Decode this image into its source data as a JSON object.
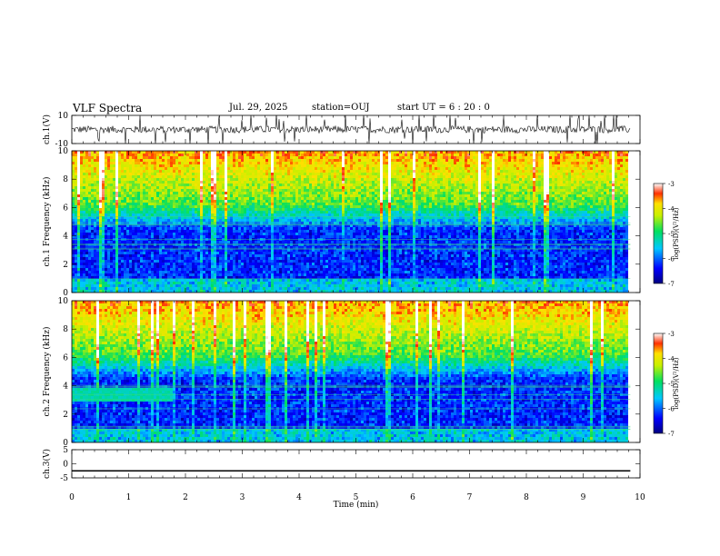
{
  "header": {
    "title": "VLF Spectra",
    "date": "Jul. 29, 2025",
    "station": "station=OUJ",
    "start": "start  UT =  6 : 20 : 0"
  },
  "chart_data": [
    {
      "id": "ch1v",
      "type": "line",
      "ylabel": "ch.1(V)",
      "ylim": [
        -10,
        10
      ],
      "yticks": [
        "10",
        "-10"
      ],
      "xlim": [
        0,
        10
      ],
      "series": [
        {
          "color": "#000000"
        }
      ]
    },
    {
      "id": "ch1spec",
      "type": "heatmap",
      "ylabel": "ch.1 Frequency (kHz)",
      "ylim": [
        0,
        10
      ],
      "yticks": [
        "0",
        "2",
        "4",
        "6",
        "8",
        "10"
      ],
      "xlim": [
        0,
        10
      ],
      "data_end_min": 9.83,
      "colorbar": {
        "label": "log(PSD)(V²/Hz)",
        "range": [
          -7,
          -3
        ],
        "ticks": [
          "-3",
          "-4",
          "-5",
          "-6",
          "-7"
        ]
      }
    },
    {
      "id": "ch2spec",
      "type": "heatmap",
      "ylabel": "ch.2 Frequency (kHz)",
      "ylim": [
        0,
        10
      ],
      "yticks": [
        "0",
        "2",
        "4",
        "6",
        "8",
        "10"
      ],
      "xlim": [
        0,
        10
      ],
      "data_end_min": 9.83,
      "colorbar": {
        "label": "log(PSD)(V²/Hz)",
        "range": [
          -7,
          -3
        ],
        "ticks": [
          "-3",
          "-4",
          "-5",
          "-6",
          "-7"
        ]
      }
    },
    {
      "id": "ch3v",
      "type": "line",
      "ylabel": "ch.3(V)",
      "ylim": [
        -5,
        5
      ],
      "yticks": [
        "5",
        "0",
        "-5"
      ],
      "xlim": [
        0,
        10
      ],
      "series": [
        {
          "color": "#000000",
          "constant": -2.5
        }
      ],
      "xlabel": "Time  (min)",
      "xticks": [
        "0",
        "1",
        "2",
        "3",
        "4",
        "5",
        "6",
        "7",
        "8",
        "9",
        "10"
      ]
    }
  ]
}
